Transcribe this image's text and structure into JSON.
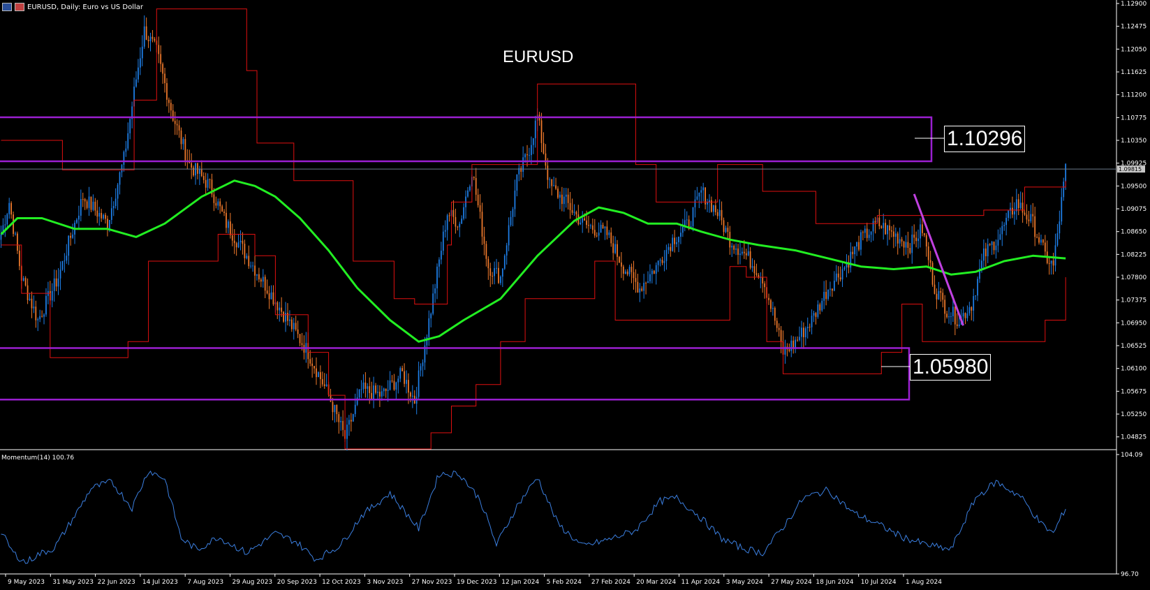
{
  "header": {
    "symbol_text": "EURUSD, Daily:  Euro vs US Dollar"
  },
  "annotations": {
    "title": "EURUSD",
    "resistance_label": "1.10296",
    "support_label": "1.05980",
    "current_price_label": "1.09815"
  },
  "momentum": {
    "label": "Momentum(14) 100.76",
    "ymax_label": "104.09",
    "ymin_label": "96.70"
  },
  "colors": {
    "background": "#000000",
    "bull_candle": "#1e7fe8",
    "bear_candle": "#f07a2c",
    "ma_line": "#22ee22",
    "channel": "#e01010",
    "zone": "#9a1fd0",
    "trendline": "#c040e0",
    "momentum_line": "#3b7fe0",
    "axis": "#ffffff"
  },
  "chart_data": [
    {
      "type": "candlestick",
      "symbol": "EURUSD",
      "timeframe": "Daily",
      "ylim": [
        1.046,
        1.129
      ],
      "y_ticks": [
        "1.12900",
        "1.12475",
        "1.12050",
        "1.11625",
        "1.11200",
        "1.10775",
        "1.10350",
        "1.09925",
        "1.09500",
        "1.09075",
        "1.08650",
        "1.08225",
        "1.07800",
        "1.07375",
        "1.06950",
        "1.06525",
        "1.06100",
        "1.05675",
        "1.05250",
        "1.04825"
      ],
      "x_ticks": [
        "9 May 2023",
        "31 May 2023",
        "22 Jun 2023",
        "14 Jul 2023",
        "7 Aug 2023",
        "29 Aug 2023",
        "20 Sep 2023",
        "12 Oct 2023",
        "3 Nov 2023",
        "27 Nov 2023",
        "19 Dec 2023",
        "12 Jan 2024",
        "5 Feb 2024",
        "27 Feb 2024",
        "20 Mar 2024",
        "11 Apr 2024",
        "3 May 2024",
        "27 May 2024",
        "18 Jun 2024",
        "10 Jul 2024",
        "1 Aug 2024"
      ],
      "close_anchors": [
        [
          0,
          1.086
        ],
        [
          4,
          1.092
        ],
        [
          10,
          1.078
        ],
        [
          18,
          1.07
        ],
        [
          28,
          1.078
        ],
        [
          40,
          1.093
        ],
        [
          52,
          1.088
        ],
        [
          60,
          1.1
        ],
        [
          66,
          1.115
        ],
        [
          70,
          1.124
        ],
        [
          76,
          1.12
        ],
        [
          84,
          1.108
        ],
        [
          92,
          1.099
        ],
        [
          102,
          1.095
        ],
        [
          110,
          1.088
        ],
        [
          120,
          1.082
        ],
        [
          130,
          1.076
        ],
        [
          140,
          1.07
        ],
        [
          150,
          1.064
        ],
        [
          160,
          1.056
        ],
        [
          168,
          1.048
        ],
        [
          176,
          1.057
        ],
        [
          186,
          1.056
        ],
        [
          196,
          1.06
        ],
        [
          202,
          1.055
        ],
        [
          210,
          1.072
        ],
        [
          218,
          1.09
        ],
        [
          224,
          1.088
        ],
        [
          230,
          1.098
        ],
        [
          238,
          1.08
        ],
        [
          244,
          1.078
        ],
        [
          252,
          1.096
        ],
        [
          258,
          1.102
        ],
        [
          262,
          1.108
        ],
        [
          268,
          1.095
        ],
        [
          276,
          1.092
        ],
        [
          284,
          1.088
        ],
        [
          296,
          1.086
        ],
        [
          304,
          1.08
        ],
        [
          312,
          1.076
        ],
        [
          320,
          1.08
        ],
        [
          328,
          1.085
        ],
        [
          336,
          1.088
        ],
        [
          342,
          1.094
        ],
        [
          350,
          1.09
        ],
        [
          356,
          1.085
        ],
        [
          364,
          1.082
        ],
        [
          372,
          1.078
        ],
        [
          378,
          1.07
        ],
        [
          382,
          1.064
        ],
        [
          388,
          1.066
        ],
        [
          396,
          1.07
        ],
        [
          404,
          1.076
        ],
        [
          412,
          1.08
        ],
        [
          420,
          1.085
        ],
        [
          428,
          1.088
        ],
        [
          436,
          1.086
        ],
        [
          444,
          1.084
        ],
        [
          450,
          1.087
        ],
        [
          456,
          1.076
        ],
        [
          462,
          1.072
        ],
        [
          468,
          1.07
        ],
        [
          474,
          1.073
        ],
        [
          480,
          1.082
        ],
        [
          488,
          1.086
        ],
        [
          496,
          1.092
        ],
        [
          504,
          1.088
        ],
        [
          510,
          1.082
        ],
        [
          514,
          1.08
        ],
        [
          518,
          1.092
        ],
        [
          520,
          1.0981
        ]
      ],
      "moving_average": [
        [
          0,
          1.086
        ],
        [
          8,
          1.089
        ],
        [
          20,
          1.089
        ],
        [
          36,
          1.087
        ],
        [
          52,
          1.087
        ],
        [
          66,
          1.0855
        ],
        [
          80,
          1.088
        ],
        [
          98,
          1.093
        ],
        [
          114,
          1.096
        ],
        [
          124,
          1.095
        ],
        [
          134,
          1.093
        ],
        [
          146,
          1.089
        ],
        [
          160,
          1.083
        ],
        [
          174,
          1.076
        ],
        [
          190,
          1.07
        ],
        [
          204,
          1.066
        ],
        [
          214,
          1.067
        ],
        [
          226,
          1.07
        ],
        [
          244,
          1.074
        ],
        [
          262,
          1.082
        ],
        [
          280,
          1.0885
        ],
        [
          292,
          1.091
        ],
        [
          304,
          1.09
        ],
        [
          316,
          1.088
        ],
        [
          330,
          1.088
        ],
        [
          342,
          1.0865
        ],
        [
          356,
          1.085
        ],
        [
          370,
          1.084
        ],
        [
          388,
          1.083
        ],
        [
          404,
          1.0815
        ],
        [
          420,
          1.08
        ],
        [
          436,
          1.0795
        ],
        [
          452,
          1.08
        ],
        [
          464,
          1.0785
        ],
        [
          476,
          1.079
        ],
        [
          490,
          1.081
        ],
        [
          504,
          1.082
        ],
        [
          520,
          1.0815
        ]
      ],
      "channel_upper": [
        [
          0,
          1.1035
        ],
        [
          25,
          1.1035
        ],
        [
          30,
          1.098
        ],
        [
          55,
          1.098
        ],
        [
          65,
          1.111
        ],
        [
          76,
          1.128
        ],
        [
          110,
          1.128
        ],
        [
          120,
          1.1165
        ],
        [
          125,
          1.103
        ],
        [
          140,
          1.103
        ],
        [
          143,
          1.096
        ],
        [
          167,
          1.096
        ],
        [
          172,
          1.081
        ],
        [
          192,
          1.074
        ],
        [
          202,
          1.073
        ],
        [
          216,
          1.073
        ],
        [
          218,
          1.084
        ],
        [
          220,
          1.092
        ],
        [
          230,
          1.099
        ],
        [
          262,
          1.114
        ],
        [
          300,
          1.114
        ],
        [
          310,
          1.099
        ],
        [
          320,
          1.092
        ],
        [
          340,
          1.092
        ],
        [
          350,
          1.099
        ],
        [
          370,
          1.099
        ],
        [
          372,
          1.094
        ],
        [
          390,
          1.094
        ],
        [
          398,
          1.088
        ],
        [
          420,
          1.088
        ],
        [
          428,
          1.0895
        ],
        [
          470,
          1.0895
        ],
        [
          480,
          1.0905
        ],
        [
          494,
          1.0905
        ],
        [
          500,
          1.0948
        ],
        [
          520,
          1.096
        ]
      ],
      "channel_lower": [
        [
          0,
          1.084
        ],
        [
          10,
          1.075
        ],
        [
          24,
          1.063
        ],
        [
          55,
          1.063
        ],
        [
          62,
          1.066
        ],
        [
          72,
          1.081
        ],
        [
          100,
          1.081
        ],
        [
          106,
          1.086
        ],
        [
          112,
          1.086
        ],
        [
          124,
          1.082
        ],
        [
          134,
          1.071
        ],
        [
          150,
          1.064
        ],
        [
          160,
          1.056
        ],
        [
          168,
          1.046
        ],
        [
          202,
          1.046
        ],
        [
          210,
          1.049
        ],
        [
          220,
          1.054
        ],
        [
          232,
          1.058
        ],
        [
          244,
          1.066
        ],
        [
          256,
          1.074
        ],
        [
          275,
          1.074
        ],
        [
          290,
          1.081
        ],
        [
          300,
          1.07
        ],
        [
          350,
          1.07
        ],
        [
          356,
          1.08
        ],
        [
          364,
          1.078
        ],
        [
          374,
          1.066
        ],
        [
          382,
          1.06
        ],
        [
          420,
          1.06
        ],
        [
          430,
          1.064
        ],
        [
          440,
          1.073
        ],
        [
          450,
          1.066
        ],
        [
          480,
          1.066
        ],
        [
          500,
          1.066
        ],
        [
          510,
          1.07
        ],
        [
          520,
          1.078
        ]
      ],
      "zones": [
        {
          "label": "1.10296",
          "top": 1.1078,
          "bottom": 1.0996
        },
        {
          "label": "1.05980",
          "top": 1.0648,
          "bottom": 1.0552
        }
      ],
      "trendline": [
        [
          446,
          1.0935
        ],
        [
          470,
          1.069
        ]
      ],
      "current_price": 1.09815
    },
    {
      "type": "line",
      "name": "Momentum(14)",
      "ylim": [
        96.7,
        104.09
      ],
      "last_value": 100.76,
      "anchors": [
        [
          0,
          99.3
        ],
        [
          6,
          98.0
        ],
        [
          12,
          97.4
        ],
        [
          18,
          97.9
        ],
        [
          26,
          98.3
        ],
        [
          38,
          100.7
        ],
        [
          44,
          102.0
        ],
        [
          54,
          102.4
        ],
        [
          64,
          100.8
        ],
        [
          72,
          103.1
        ],
        [
          80,
          102.6
        ],
        [
          88,
          98.9
        ],
        [
          96,
          98.2
        ],
        [
          106,
          99.0
        ],
        [
          120,
          98.0
        ],
        [
          134,
          99.2
        ],
        [
          144,
          98.7
        ],
        [
          154,
          97.6
        ],
        [
          166,
          98.5
        ],
        [
          176,
          100.3
        ],
        [
          190,
          101.7
        ],
        [
          204,
          99.5
        ],
        [
          214,
          102.9
        ],
        [
          224,
          102.9
        ],
        [
          234,
          101.3
        ],
        [
          242,
          98.5
        ],
        [
          252,
          100.9
        ],
        [
          262,
          102.7
        ],
        [
          272,
          99.8
        ],
        [
          284,
          98.4
        ],
        [
          296,
          98.8
        ],
        [
          310,
          99.4
        ],
        [
          322,
          101.2
        ],
        [
          330,
          101.4
        ],
        [
          340,
          100.4
        ],
        [
          352,
          98.9
        ],
        [
          362,
          98.3
        ],
        [
          372,
          98.0
        ],
        [
          382,
          99.6
        ],
        [
          392,
          101.4
        ],
        [
          404,
          101.9
        ],
        [
          416,
          100.5
        ],
        [
          428,
          99.8
        ],
        [
          440,
          99.0
        ],
        [
          452,
          98.5
        ],
        [
          464,
          98.2
        ],
        [
          476,
          101.4
        ],
        [
          486,
          102.4
        ],
        [
          498,
          101.5
        ],
        [
          508,
          99.8
        ],
        [
          514,
          99.2
        ],
        [
          520,
          100.8
        ]
      ]
    }
  ]
}
